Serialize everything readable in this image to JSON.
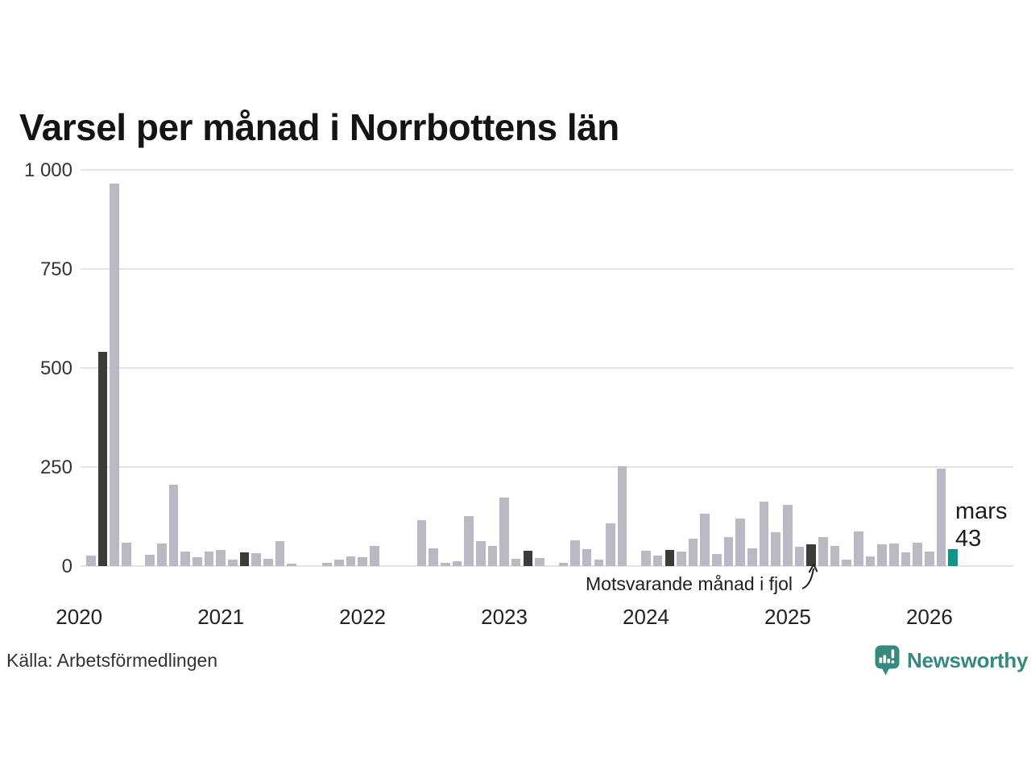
{
  "title": "Varsel per månad i Norrbottens län",
  "source": "Källa: Arbetsförmedlingen",
  "brand": {
    "name": "Newsworthy",
    "color": "#35897f"
  },
  "annotation": {
    "text": "Motsvarande månad i fjol"
  },
  "current_label": {
    "line1": "mars",
    "line2": "43"
  },
  "colors": {
    "bar": "#b9b9c4",
    "highlight": "#3b3b3b",
    "current": "#0f9489",
    "grid": "#e4e4e4",
    "text": "#333333"
  },
  "chart_data": {
    "type": "bar",
    "title": "Varsel per månad i Norrbottens län",
    "start_month": "2020-01",
    "end_month": "2026-03",
    "ylim": [
      0,
      1000
    ],
    "grid": true,
    "y_ticks": [
      {
        "label": "1 000",
        "value": 1000
      },
      {
        "label": "750",
        "value": 750
      },
      {
        "label": "500",
        "value": 500
      },
      {
        "label": "250",
        "value": 250
      },
      {
        "label": "0",
        "value": 0
      }
    ],
    "x_ticks": [
      {
        "label": "2020",
        "month_index": 0
      },
      {
        "label": "2021",
        "month_index": 12
      },
      {
        "label": "2022",
        "month_index": 24
      },
      {
        "label": "2023",
        "month_index": 36
      },
      {
        "label": "2024",
        "month_index": 48
      },
      {
        "label": "2025",
        "month_index": 60
      },
      {
        "label": "2026",
        "month_index": 72
      }
    ],
    "values": [
      0,
      26,
      540,
      965,
      58,
      0,
      29,
      56,
      205,
      36,
      22,
      37,
      40,
      16,
      34,
      33,
      19,
      64,
      7,
      0,
      0,
      9,
      17,
      24,
      23,
      50,
      0,
      0,
      0,
      115,
      45,
      8,
      12,
      126,
      63,
      51,
      173,
      19,
      38,
      20,
      0,
      8,
      65,
      42,
      16,
      107,
      253,
      0,
      38,
      26,
      41,
      36,
      70,
      132,
      30,
      74,
      120,
      44,
      163,
      85,
      155,
      49,
      54,
      74,
      51,
      16,
      87,
      24,
      55,
      57,
      35,
      59,
      36,
      245,
      43
    ],
    "highlight_same_month_indices": [
      2,
      14,
      26,
      38,
      50,
      62
    ],
    "current_index": 74,
    "legend": {
      "highlight_meaning": "Motsvarande månad i fjol",
      "current_meaning": "mars 43"
    }
  }
}
